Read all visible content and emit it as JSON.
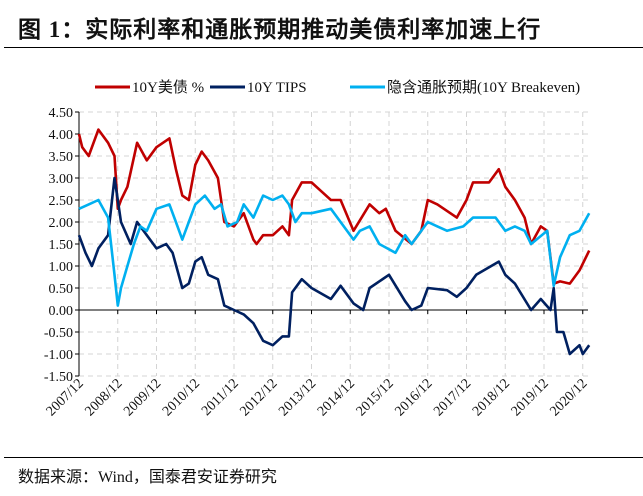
{
  "title": "图 1：实际利率和通胀预期推动美债利率加速上行",
  "source": "数据来源：Wind，国泰君安证券研究",
  "chart_data": {
    "type": "line",
    "title": "",
    "xlabel": "",
    "ylabel": "",
    "ylim": [
      -1.5,
      4.5
    ],
    "yticks": [
      "4.50",
      "4.00",
      "3.50",
      "3.00",
      "2.50",
      "2.00",
      "1.50",
      "1.00",
      "0.50",
      "0.00",
      "-0.50",
      "-1.00",
      "-1.50"
    ],
    "xticks": [
      "2007/12",
      "2008/12",
      "2009/12",
      "2010/12",
      "2011/12",
      "2012/12",
      "2013/12",
      "2014/12",
      "2015/12",
      "2016/12",
      "2017/12",
      "2018/12",
      "2019/12",
      "2020/12"
    ],
    "grid": true,
    "legend": "top",
    "series": [
      {
        "name": "10Y美债 %",
        "color": "#C00000",
        "points": [
          [
            "2007-12",
            4.0
          ],
          [
            "2008-01",
            3.7
          ],
          [
            "2008-03",
            3.5
          ],
          [
            "2008-06",
            4.1
          ],
          [
            "2008-09",
            3.8
          ],
          [
            "2008-11",
            3.5
          ],
          [
            "2008-12",
            2.3
          ],
          [
            "2009-01",
            2.5
          ],
          [
            "2009-03",
            2.8
          ],
          [
            "2009-06",
            3.8
          ],
          [
            "2009-09",
            3.4
          ],
          [
            "2009-12",
            3.7
          ],
          [
            "2010-04",
            3.9
          ],
          [
            "2010-06",
            3.2
          ],
          [
            "2010-08",
            2.6
          ],
          [
            "2010-10",
            2.5
          ],
          [
            "2010-12",
            3.3
          ],
          [
            "2011-02",
            3.6
          ],
          [
            "2011-04",
            3.4
          ],
          [
            "2011-07",
            3.0
          ],
          [
            "2011-09",
            2.0
          ],
          [
            "2011-12",
            1.9
          ],
          [
            "2012-03",
            2.2
          ],
          [
            "2012-06",
            1.6
          ],
          [
            "2012-07",
            1.5
          ],
          [
            "2012-09",
            1.7
          ],
          [
            "2012-12",
            1.7
          ],
          [
            "2013-03",
            1.9
          ],
          [
            "2013-05",
            1.7
          ],
          [
            "2013-06",
            2.5
          ],
          [
            "2013-09",
            2.9
          ],
          [
            "2013-12",
            2.9
          ],
          [
            "2014-03",
            2.7
          ],
          [
            "2014-06",
            2.5
          ],
          [
            "2014-09",
            2.5
          ],
          [
            "2015-01",
            1.8
          ],
          [
            "2015-06",
            2.4
          ],
          [
            "2015-09",
            2.2
          ],
          [
            "2015-11",
            2.3
          ],
          [
            "2016-02",
            1.8
          ],
          [
            "2016-07",
            1.5
          ],
          [
            "2016-10",
            1.8
          ],
          [
            "2016-12",
            2.5
          ],
          [
            "2017-03",
            2.4
          ],
          [
            "2017-09",
            2.1
          ],
          [
            "2017-12",
            2.5
          ],
          [
            "2018-02",
            2.9
          ],
          [
            "2018-07",
            2.9
          ],
          [
            "2018-10",
            3.2
          ],
          [
            "2018-12",
            2.8
          ],
          [
            "2019-03",
            2.5
          ],
          [
            "2019-06",
            2.1
          ],
          [
            "2019-08",
            1.5
          ],
          [
            "2019-11",
            1.9
          ],
          [
            "2020-01",
            1.8
          ],
          [
            "2020-03",
            0.6
          ],
          [
            "2020-05",
            0.65
          ],
          [
            "2020-08",
            0.6
          ],
          [
            "2020-11",
            0.9
          ],
          [
            "2021-02",
            1.35
          ]
        ]
      },
      {
        "name": "10Y TIPS",
        "color": "#002060",
        "points": [
          [
            "2007-12",
            1.7
          ],
          [
            "2008-02",
            1.3
          ],
          [
            "2008-04",
            1.0
          ],
          [
            "2008-06",
            1.4
          ],
          [
            "2008-09",
            1.7
          ],
          [
            "2008-11",
            3.0
          ],
          [
            "2008-12",
            2.5
          ],
          [
            "2009-01",
            2.0
          ],
          [
            "2009-04",
            1.5
          ],
          [
            "2009-06",
            2.0
          ],
          [
            "2009-09",
            1.7
          ],
          [
            "2009-12",
            1.4
          ],
          [
            "2010-03",
            1.5
          ],
          [
            "2010-05",
            1.3
          ],
          [
            "2010-08",
            0.5
          ],
          [
            "2010-10",
            0.6
          ],
          [
            "2010-12",
            1.1
          ],
          [
            "2011-02",
            1.2
          ],
          [
            "2011-04",
            0.8
          ],
          [
            "2011-07",
            0.7
          ],
          [
            "2011-09",
            0.1
          ],
          [
            "2011-12",
            0.0
          ],
          [
            "2012-03",
            -0.1
          ],
          [
            "2012-06",
            -0.3
          ],
          [
            "2012-09",
            -0.7
          ],
          [
            "2012-12",
            -0.8
          ],
          [
            "2013-03",
            -0.6
          ],
          [
            "2013-05",
            -0.6
          ],
          [
            "2013-06",
            0.4
          ],
          [
            "2013-09",
            0.7
          ],
          [
            "2013-12",
            0.5
          ],
          [
            "2014-06",
            0.25
          ],
          [
            "2014-09",
            0.55
          ],
          [
            "2015-01",
            0.15
          ],
          [
            "2015-04",
            0.0
          ],
          [
            "2015-06",
            0.5
          ],
          [
            "2015-12",
            0.8
          ],
          [
            "2016-05",
            0.2
          ],
          [
            "2016-07",
            0.0
          ],
          [
            "2016-10",
            0.1
          ],
          [
            "2016-12",
            0.5
          ],
          [
            "2017-06",
            0.45
          ],
          [
            "2017-09",
            0.3
          ],
          [
            "2017-12",
            0.5
          ],
          [
            "2018-03",
            0.8
          ],
          [
            "2018-10",
            1.1
          ],
          [
            "2018-12",
            0.8
          ],
          [
            "2019-03",
            0.6
          ],
          [
            "2019-08",
            0.0
          ],
          [
            "2019-11",
            0.25
          ],
          [
            "2020-02",
            0.0
          ],
          [
            "2020-03",
            0.5
          ],
          [
            "2020-04",
            -0.5
          ],
          [
            "2020-06",
            -0.5
          ],
          [
            "2020-08",
            -1.0
          ],
          [
            "2020-11",
            -0.8
          ],
          [
            "2020-12",
            -1.0
          ],
          [
            "2021-02",
            -0.8
          ]
        ]
      },
      {
        "name": "隐含通胀预期(10Y Breakeven)",
        "color": "#00B0F0",
        "points": [
          [
            "2007-12",
            2.3
          ],
          [
            "2008-03",
            2.4
          ],
          [
            "2008-06",
            2.5
          ],
          [
            "2008-09",
            2.1
          ],
          [
            "2008-11",
            0.8
          ],
          [
            "2008-12",
            0.1
          ],
          [
            "2009-01",
            0.5
          ],
          [
            "2009-03",
            1.0
          ],
          [
            "2009-05",
            1.5
          ],
          [
            "2009-07",
            1.9
          ],
          [
            "2009-09",
            1.8
          ],
          [
            "2009-12",
            2.3
          ],
          [
            "2010-04",
            2.4
          ],
          [
            "2010-06",
            2.0
          ],
          [
            "2010-08",
            1.6
          ],
          [
            "2010-10",
            2.0
          ],
          [
            "2010-12",
            2.4
          ],
          [
            "2011-03",
            2.6
          ],
          [
            "2011-06",
            2.3
          ],
          [
            "2011-08",
            2.4
          ],
          [
            "2011-10",
            1.9
          ],
          [
            "2012-01",
            2.0
          ],
          [
            "2012-03",
            2.4
          ],
          [
            "2012-06",
            2.1
          ],
          [
            "2012-09",
            2.6
          ],
          [
            "2012-12",
            2.5
          ],
          [
            "2013-03",
            2.6
          ],
          [
            "2013-05",
            2.4
          ],
          [
            "2013-07",
            2.0
          ],
          [
            "2013-09",
            2.2
          ],
          [
            "2013-12",
            2.2
          ],
          [
            "2014-06",
            2.3
          ],
          [
            "2015-01",
            1.6
          ],
          [
            "2015-03",
            1.8
          ],
          [
            "2015-06",
            1.9
          ],
          [
            "2015-09",
            1.5
          ],
          [
            "2016-02",
            1.3
          ],
          [
            "2016-05",
            1.7
          ],
          [
            "2016-07",
            1.5
          ],
          [
            "2016-12",
            2.0
          ],
          [
            "2017-03",
            1.9
          ],
          [
            "2017-06",
            1.8
          ],
          [
            "2017-11",
            1.9
          ],
          [
            "2018-02",
            2.1
          ],
          [
            "2018-09",
            2.1
          ],
          [
            "2018-12",
            1.8
          ],
          [
            "2019-03",
            1.9
          ],
          [
            "2019-06",
            1.8
          ],
          [
            "2019-08",
            1.5
          ],
          [
            "2020-01",
            1.8
          ],
          [
            "2020-03",
            0.55
          ],
          [
            "2020-05",
            1.2
          ],
          [
            "2020-08",
            1.7
          ],
          [
            "2020-11",
            1.8
          ],
          [
            "2021-02",
            2.2
          ]
        ]
      }
    ]
  }
}
